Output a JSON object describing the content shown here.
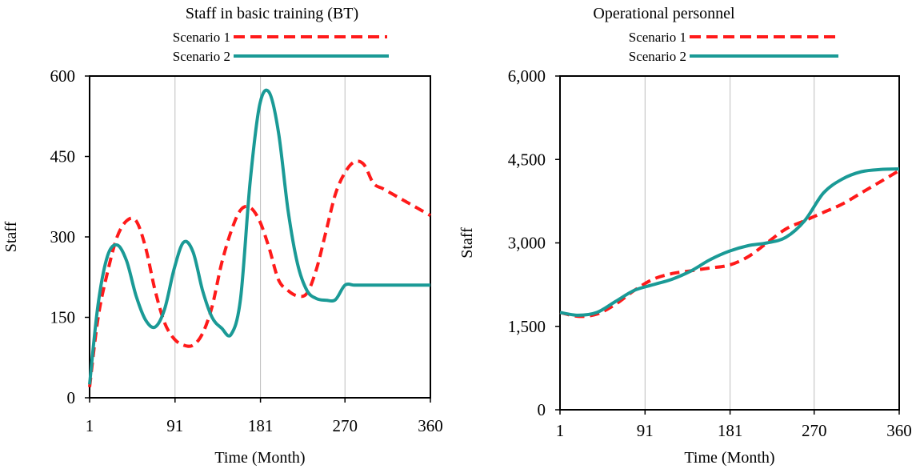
{
  "chart_data": [
    {
      "type": "line",
      "title": "Staff in basic training (BT)",
      "xlabel": "Time (Month)",
      "ylabel": "Staff",
      "xlim": [
        1,
        360
      ],
      "ylim": [
        0,
        600
      ],
      "x_ticks": [
        "1",
        "91",
        "181",
        "270",
        "360"
      ],
      "y_ticks": [
        "0",
        "150",
        "300",
        "450",
        "600"
      ],
      "grid": "vertical",
      "legend_position": "top",
      "series": [
        {
          "name": "Scenario 1",
          "color": "#ff1a1a",
          "style": "dashed",
          "x": [
            1,
            10,
            20,
            30,
            40,
            50,
            60,
            70,
            80,
            90,
            100,
            110,
            120,
            130,
            140,
            150,
            160,
            170,
            180,
            190,
            200,
            210,
            220,
            230,
            240,
            250,
            260,
            270,
            280,
            290,
            300,
            310,
            320,
            330,
            340,
            350,
            360
          ],
          "y": [
            20,
            150,
            235,
            300,
            330,
            330,
            280,
            200,
            140,
            110,
            98,
            98,
            120,
            170,
            250,
            310,
            350,
            355,
            330,
            280,
            220,
            200,
            190,
            195,
            240,
            310,
            380,
            420,
            440,
            435,
            400,
            390,
            380,
            370,
            360,
            350,
            340
          ]
        },
        {
          "name": "Scenario 2",
          "color": "#1a9a96",
          "style": "solid",
          "x": [
            1,
            10,
            20,
            30,
            40,
            50,
            60,
            70,
            80,
            90,
            100,
            110,
            120,
            130,
            140,
            150,
            160,
            170,
            180,
            190,
            200,
            210,
            220,
            230,
            240,
            250,
            260,
            270,
            280,
            290,
            300,
            310,
            320,
            330,
            340,
            350,
            360
          ],
          "y": [
            25,
            175,
            265,
            285,
            255,
            190,
            145,
            132,
            165,
            240,
            290,
            272,
            200,
            150,
            130,
            118,
            185,
            400,
            545,
            570,
            495,
            350,
            250,
            200,
            185,
            182,
            183,
            210,
            210,
            210,
            210,
            210,
            210,
            210,
            210,
            210,
            210
          ]
        }
      ]
    },
    {
      "type": "line",
      "title": "Operational personnel",
      "xlabel": "Time (Month)",
      "ylabel": "Staff",
      "xlim": [
        1,
        360
      ],
      "ylim": [
        0,
        6000
      ],
      "x_ticks": [
        "1",
        "91",
        "181",
        "270",
        "360"
      ],
      "y_ticks": [
        "0",
        "1,500",
        "3,000",
        "4,500",
        "6,000"
      ],
      "grid": "vertical",
      "legend_position": "top",
      "series": [
        {
          "name": "Scenario 1",
          "color": "#ff1a1a",
          "style": "dashed",
          "x": [
            1,
            20,
            40,
            60,
            80,
            100,
            120,
            140,
            160,
            180,
            200,
            220,
            240,
            260,
            280,
            300,
            320,
            340,
            360
          ],
          "y": [
            1750,
            1680,
            1720,
            1900,
            2150,
            2350,
            2450,
            2500,
            2550,
            2600,
            2750,
            3000,
            3250,
            3400,
            3550,
            3700,
            3900,
            4100,
            4300
          ]
        },
        {
          "name": "Scenario 2",
          "color": "#1a9a96",
          "style": "solid",
          "x": [
            1,
            20,
            40,
            60,
            80,
            100,
            120,
            140,
            160,
            180,
            200,
            220,
            240,
            260,
            280,
            300,
            320,
            340,
            360
          ],
          "y": [
            1750,
            1700,
            1750,
            1950,
            2150,
            2250,
            2350,
            2500,
            2700,
            2850,
            2950,
            3000,
            3100,
            3400,
            3900,
            4150,
            4280,
            4320,
            4330
          ]
        }
      ]
    }
  ]
}
